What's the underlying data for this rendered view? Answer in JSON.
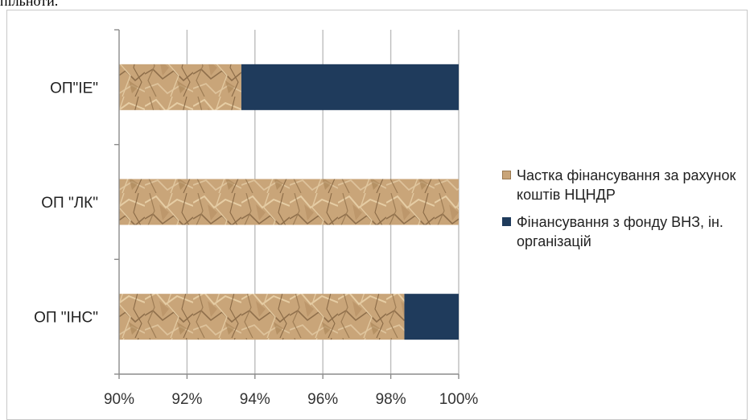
{
  "page": {
    "top_text": "пільноти."
  },
  "colors": {
    "paper": "#c9a579",
    "navy": "#1f3b5c",
    "axis": "#8c8c8c",
    "grid": "#bdbdbd"
  },
  "chart_data": {
    "type": "bar",
    "orientation": "horizontal",
    "stacked": "percent",
    "categories": [
      "ОП\"ІЕ\"",
      "ОП \"ЛК\"",
      "ОП \"ІНС\""
    ],
    "series": [
      {
        "name": "Частка фінансування за рахунок коштів  НЦНДР",
        "color": "#c9a579",
        "pattern": "crumpled-paper",
        "values": [
          93.6,
          100.0,
          98.4
        ]
      },
      {
        "name": "Фінансування з фонду ВНЗ, ін. організацій",
        "color": "#1f3b5c",
        "values": [
          6.4,
          0.0,
          1.6
        ]
      }
    ],
    "xlim": [
      90,
      100
    ],
    "xticks": [
      "90%",
      "92%",
      "94%",
      "96%",
      "98%",
      "100%"
    ],
    "grid": "vertical",
    "legend_position": "right",
    "title": "",
    "xlabel": "",
    "ylabel": ""
  }
}
